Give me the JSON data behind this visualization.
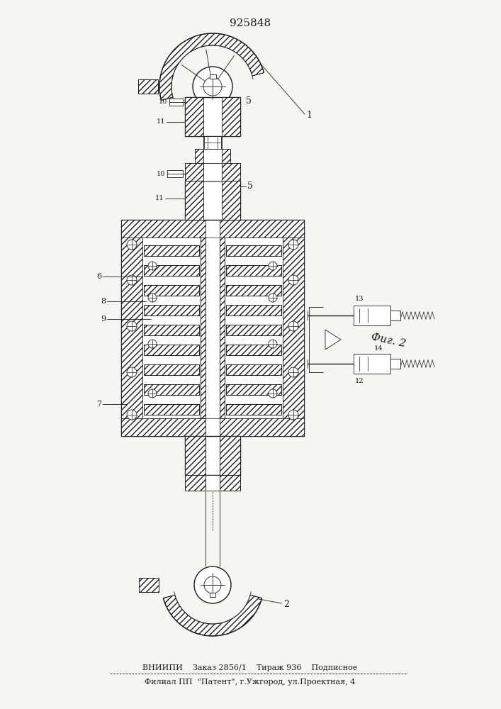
{
  "patent_number": "925848",
  "fig_label": "Фиг. 2",
  "bottom_line1": "ВНИИПИ    Заказ 2856/1    Тираж 936    Подписное",
  "bottom_line2": "Филиал ПП  \"Патент\", г.Ужгород, ул.Проектная, 4",
  "bg_color": "#f5f5f2",
  "line_color": "#1a1a1a"
}
